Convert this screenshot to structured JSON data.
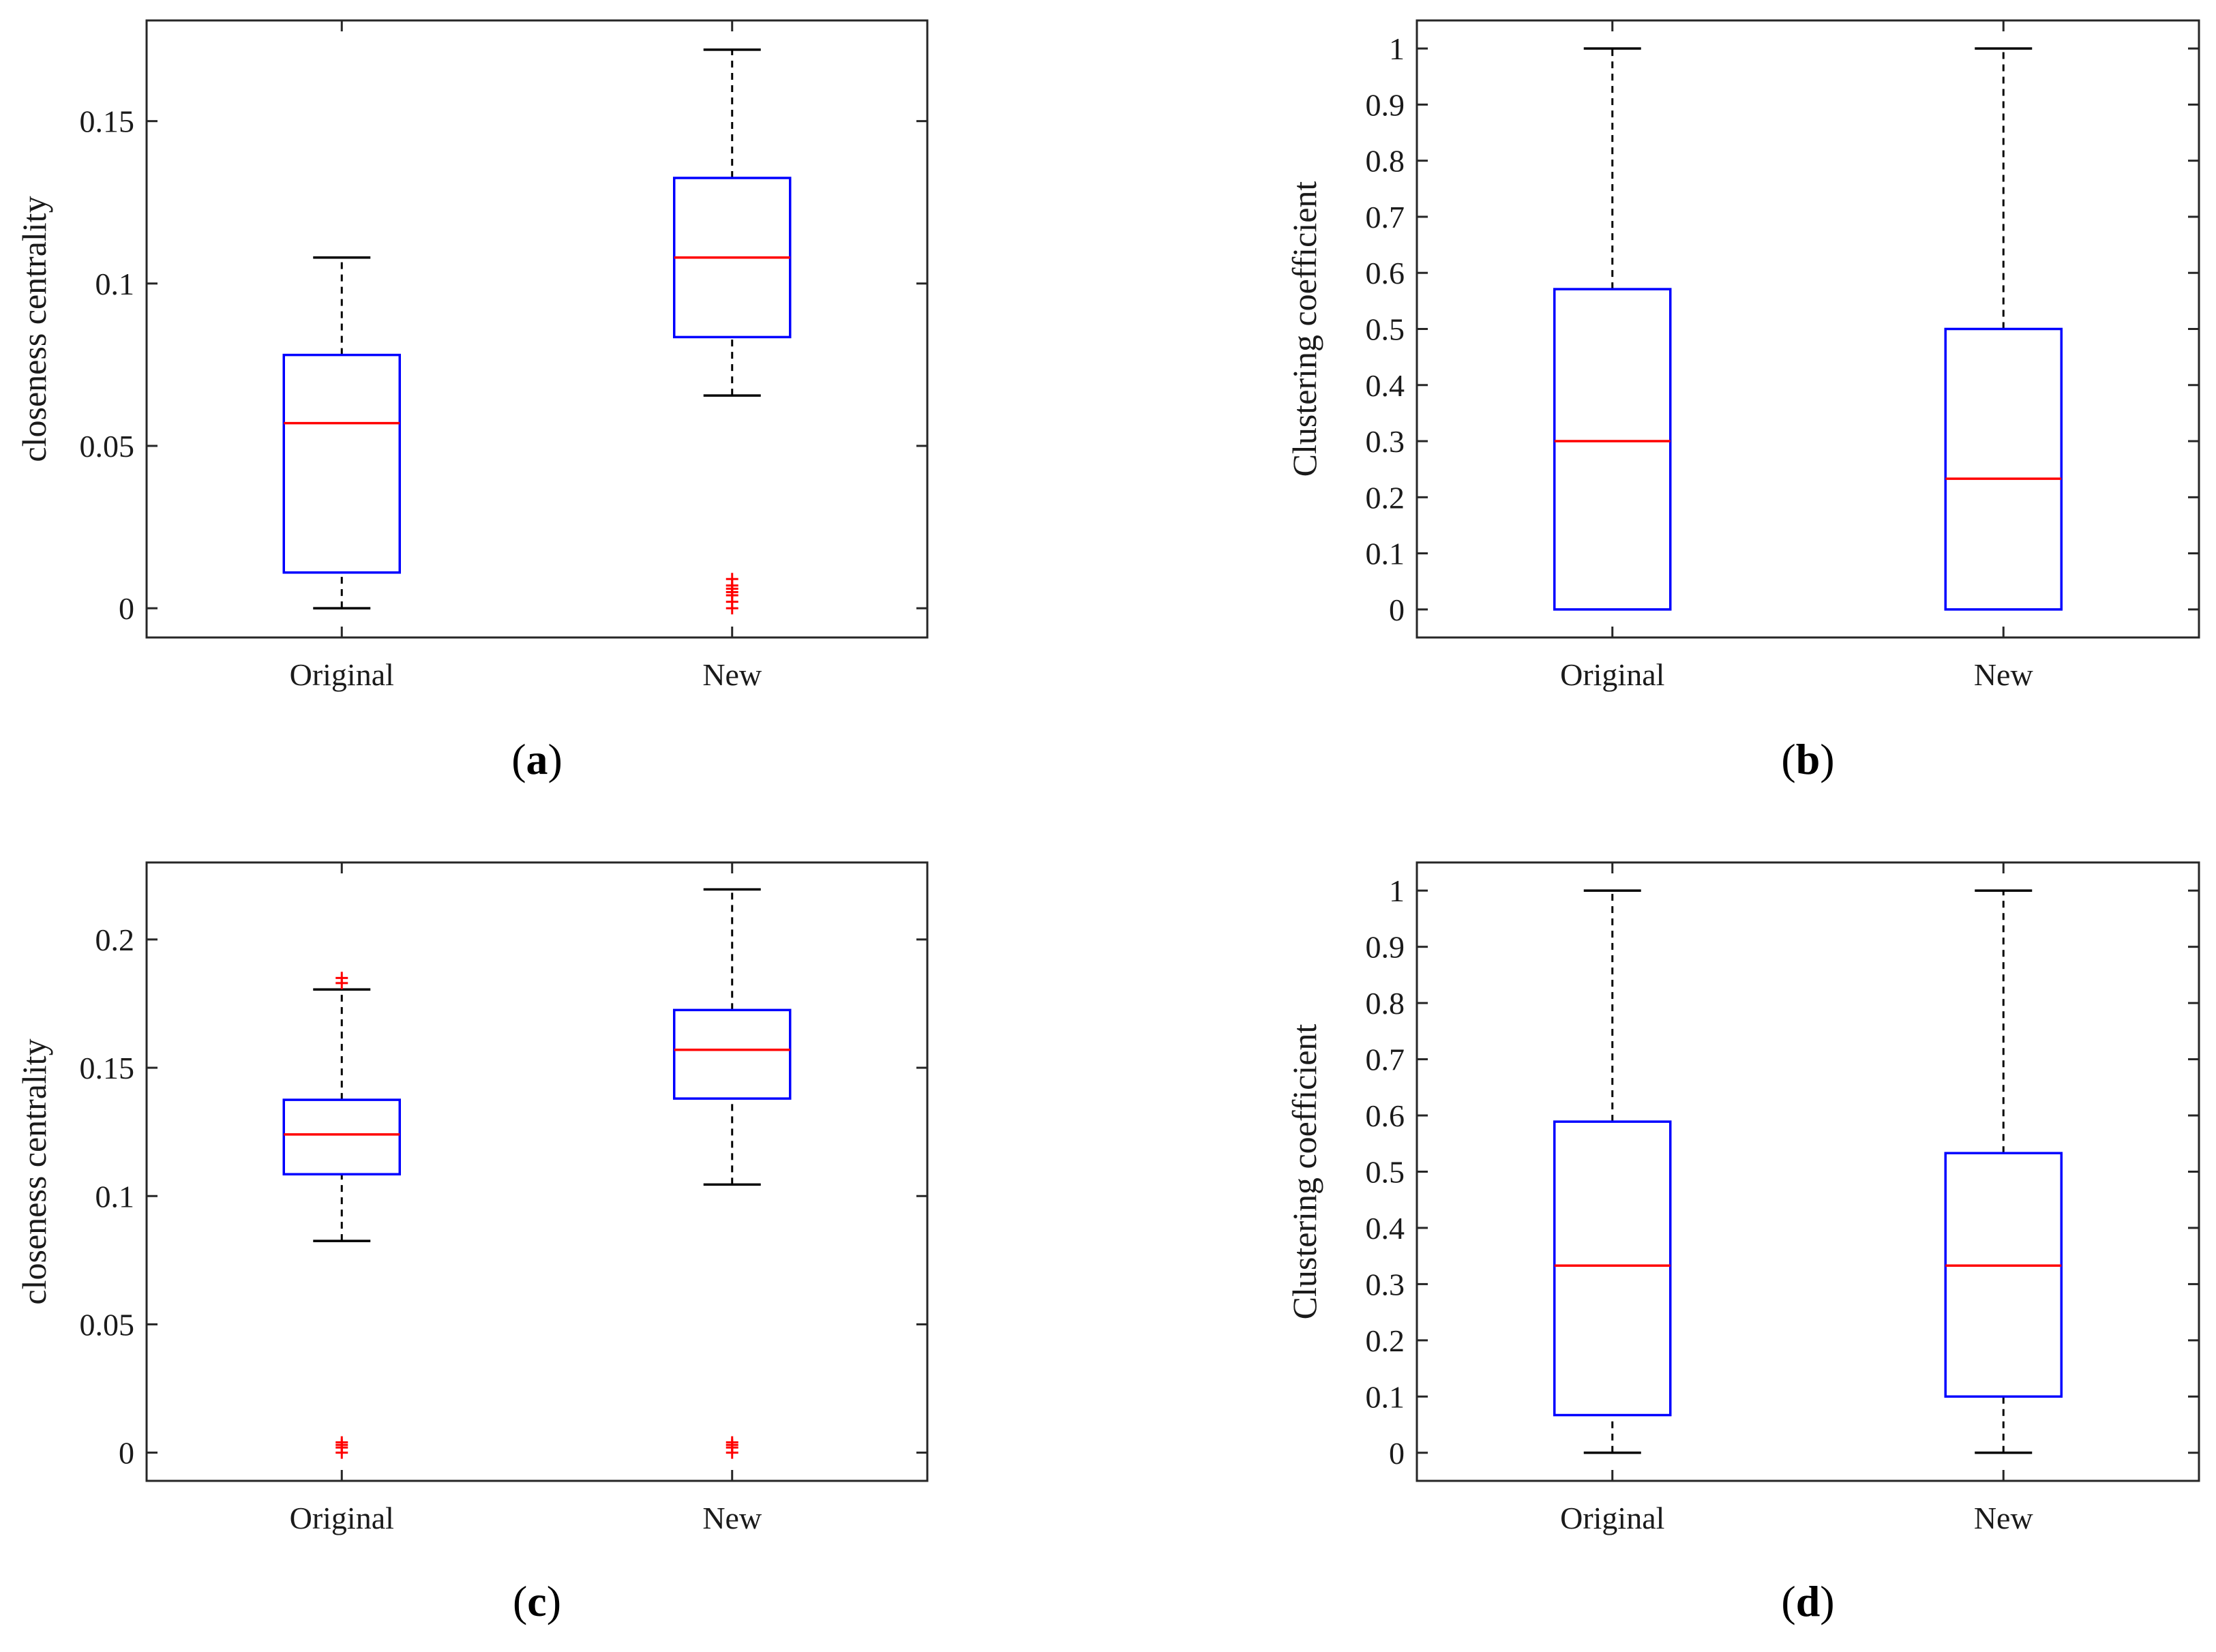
{
  "figure": {
    "panels": [
      "a",
      "b",
      "c",
      "d"
    ]
  },
  "colors": {
    "box": "#0000ff",
    "median": "#ff0000",
    "outlier": "#ff0000",
    "whisker": "#000000",
    "axis": "#262626"
  },
  "chart_data": [
    {
      "id": "a",
      "caption_prefix": "(",
      "caption_letter": "a",
      "caption_suffix": ")",
      "type": "box",
      "ylabel": "closeness centrality",
      "categories": [
        "Original",
        "New"
      ],
      "ylim": [
        -0.009,
        0.181
      ],
      "yticks": [
        0,
        0.05,
        0.1,
        0.15
      ],
      "ytick_labels": [
        "0",
        "0.05",
        "0.1",
        "0.15"
      ],
      "boxes": [
        {
          "min": 0,
          "q1": 0.011,
          "median": 0.057,
          "q3": 0.078,
          "max": 0.108,
          "outliers": []
        },
        {
          "min": 0.0655,
          "q1": 0.0835,
          "median": 0.108,
          "q3": 0.1325,
          "max": 0.172,
          "outliers": [
            0.0,
            0.002,
            0.004,
            0.005,
            0.006,
            0.007,
            0.009
          ]
        }
      ]
    },
    {
      "id": "b",
      "caption_prefix": "(",
      "caption_letter": "b",
      "caption_suffix": ")",
      "type": "box",
      "ylabel": "Clustering coefficient",
      "categories": [
        "Original",
        "New"
      ],
      "ylim": [
        -0.05,
        1.05
      ],
      "yticks": [
        0,
        0.1,
        0.2,
        0.3,
        0.4,
        0.5,
        0.6,
        0.7,
        0.8,
        0.9,
        1
      ],
      "ytick_labels": [
        "0",
        "0.1",
        "0.2",
        "0.3",
        "0.4",
        "0.5",
        "0.6",
        "0.7",
        "0.8",
        "0.9",
        "1"
      ],
      "boxes": [
        {
          "min": 0,
          "q1": 0,
          "median": 0.3,
          "q3": 0.571,
          "max": 1,
          "outliers": []
        },
        {
          "min": 0,
          "q1": 0,
          "median": 0.233,
          "q3": 0.5,
          "max": 1,
          "outliers": []
        }
      ]
    },
    {
      "id": "c",
      "caption_prefix": "(",
      "caption_letter": "c",
      "caption_suffix": ")",
      "type": "box",
      "ylabel": "closeness centrality",
      "categories": [
        "Original",
        "New"
      ],
      "ylim": [
        -0.011,
        0.23
      ],
      "yticks": [
        0,
        0.05,
        0.1,
        0.15,
        0.2
      ],
      "ytick_labels": [
        "0",
        "0.05",
        "0.1",
        "0.15",
        "0.2"
      ],
      "boxes": [
        {
          "min": 0.0825,
          "q1": 0.1085,
          "median": 0.124,
          "q3": 0.1375,
          "max": 0.1805,
          "outliers": [
            0.0,
            0.002,
            0.003,
            0.004,
            0.183,
            0.185
          ]
        },
        {
          "min": 0.1045,
          "q1": 0.138,
          "median": 0.157,
          "q3": 0.1725,
          "max": 0.2195,
          "outliers": [
            0.0,
            0.002,
            0.003,
            0.004
          ]
        }
      ]
    },
    {
      "id": "d",
      "caption_prefix": "(",
      "caption_letter": "d",
      "caption_suffix": ")",
      "type": "box",
      "ylabel": "Clustering coefficient",
      "categories": [
        "Original",
        "New"
      ],
      "ylim": [
        -0.05,
        1.05
      ],
      "yticks": [
        0,
        0.1,
        0.2,
        0.3,
        0.4,
        0.5,
        0.6,
        0.7,
        0.8,
        0.9,
        1
      ],
      "ytick_labels": [
        "0",
        "0.1",
        "0.2",
        "0.3",
        "0.4",
        "0.5",
        "0.6",
        "0.7",
        "0.8",
        "0.9",
        "1"
      ],
      "boxes": [
        {
          "min": 0,
          "q1": 0.067,
          "median": 0.333,
          "q3": 0.589,
          "max": 1,
          "outliers": []
        },
        {
          "min": 0,
          "q1": 0.1,
          "median": 0.333,
          "q3": 0.533,
          "max": 1,
          "outliers": []
        }
      ]
    }
  ]
}
